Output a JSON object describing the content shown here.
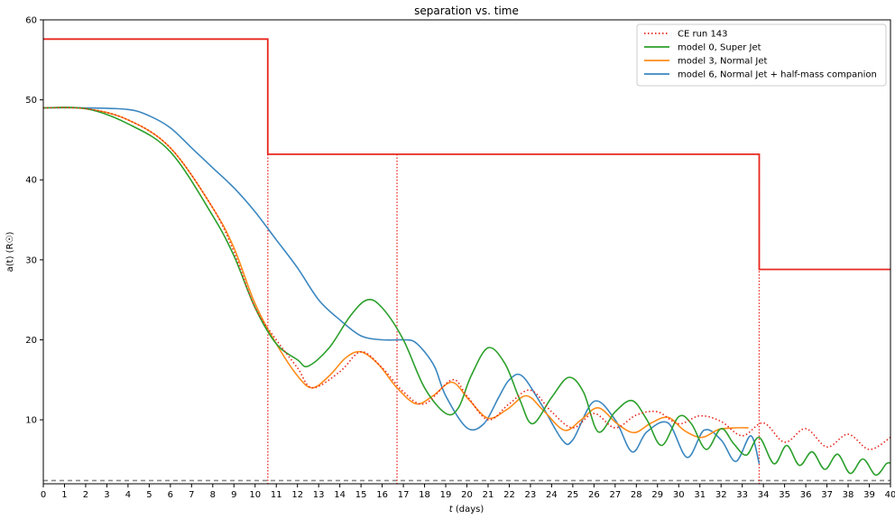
{
  "chart_data": {
    "type": "line",
    "title": "separation vs. time",
    "xlabel": "t (days)",
    "ylabel": "a(t) (R☉)",
    "xlim": [
      0,
      40
    ],
    "ylim": [
      2,
      60
    ],
    "x_ticks": [
      0,
      1,
      2,
      3,
      4,
      5,
      6,
      7,
      8,
      9,
      10,
      11,
      12,
      13,
      14,
      15,
      16,
      17,
      18,
      19,
      20,
      21,
      22,
      23,
      24,
      25,
      26,
      27,
      28,
      29,
      30,
      31,
      32,
      33,
      34,
      35,
      36,
      37,
      38,
      39,
      40
    ],
    "y_ticks": [
      10,
      20,
      30,
      40,
      50,
      60
    ],
    "grid": false,
    "legend_position": "top-right",
    "legend": [
      {
        "label": "CE run 143",
        "color": "#e8281e",
        "style": "dotted"
      },
      {
        "label": "model 0, Super Jet",
        "color": "#2ca02c",
        "style": "solid"
      },
      {
        "label": "model 3, Normal Jet",
        "color": "#ff8c1a",
        "style": "solid"
      },
      {
        "label": "model 6, Normal Jet + half-mass companion",
        "color": "#3b87c0",
        "style": "solid"
      }
    ],
    "step_line": {
      "color": "#e8281e",
      "points": [
        [
          0,
          57.6
        ],
        [
          10.6,
          57.6
        ],
        [
          10.6,
          43.2
        ],
        [
          33.8,
          43.2
        ],
        [
          33.8,
          28.8
        ],
        [
          40,
          28.8
        ]
      ]
    },
    "vertical_dotted_lines": {
      "color": "#e8281e",
      "x": [
        10.6,
        16.7,
        33.8
      ]
    },
    "baseline_dashed": {
      "y": 2.4,
      "color": "#888888"
    },
    "series": [
      {
        "name": "CE run 143",
        "color": "#e8281e",
        "style": "dotted",
        "x": [
          0,
          2,
          4,
          6,
          8,
          9,
          10,
          11,
          12,
          12.7,
          14,
          15,
          16,
          17,
          18,
          19.3,
          20,
          21,
          22,
          23,
          24,
          25,
          26,
          27,
          28,
          29,
          30,
          31,
          32,
          33,
          34,
          35,
          36,
          37,
          38,
          39,
          40
        ],
        "y": [
          49.0,
          48.9,
          47.5,
          44.0,
          36.5,
          31.0,
          24.0,
          20.0,
          16.5,
          14.0,
          16.0,
          18.5,
          16.5,
          13.5,
          12.0,
          15.0,
          13.0,
          10.0,
          12.0,
          13.7,
          11.0,
          9.0,
          10.8,
          9.0,
          10.6,
          11.0,
          9.5,
          10.5,
          9.8,
          8.0,
          9.6,
          7.2,
          8.9,
          6.6,
          8.2,
          6.3,
          7.8
        ]
      },
      {
        "name": "model 0, Super Jet",
        "color": "#2ca02c",
        "style": "solid",
        "x": [
          0,
          2,
          4,
          6,
          8,
          9,
          10,
          11,
          12,
          12.5,
          13.5,
          14.5,
          15.3,
          16,
          17,
          18,
          19,
          19.6,
          20.2,
          21,
          21.8,
          22.5,
          23.1,
          24,
          24.8,
          25.5,
          26.2,
          27,
          27.8,
          28.5,
          29.2,
          30,
          30.6,
          31.3,
          32,
          32.6,
          33.2,
          33.8,
          34.5,
          35.1,
          35.7,
          36.3,
          36.9,
          37.5,
          38.1,
          38.7,
          39.3,
          39.8,
          40
        ],
        "y": [
          49.0,
          48.9,
          47.0,
          43.5,
          35.5,
          30.5,
          24.0,
          19.5,
          17.5,
          16.7,
          19.0,
          23.0,
          25.0,
          24.0,
          20.0,
          14.0,
          10.8,
          11.5,
          15.5,
          19.0,
          17.0,
          12.5,
          9.5,
          12.8,
          15.3,
          13.5,
          8.5,
          11.0,
          12.4,
          10.0,
          6.8,
          10.4,
          9.5,
          6.3,
          8.9,
          7.0,
          5.6,
          7.8,
          4.5,
          6.8,
          4.3,
          6.0,
          3.8,
          5.7,
          3.3,
          5.1,
          3.1,
          4.5,
          4.6
        ]
      },
      {
        "name": "model 3, Normal Jet",
        "color": "#ff8c1a",
        "style": "solid",
        "x": [
          0,
          2,
          4,
          6,
          8,
          9,
          10,
          11,
          12,
          12.7,
          13.5,
          14.3,
          15,
          15.8,
          16.7,
          17.6,
          18.4,
          19.3,
          20.1,
          21,
          21.9,
          22.8,
          23.6,
          24.6,
          25.4,
          26.2,
          27.1,
          27.9,
          28.7,
          29.5,
          30.3,
          31.1,
          31.9,
          32.7,
          33.3
        ],
        "y": [
          49.0,
          48.9,
          47.5,
          44.0,
          36.5,
          31.5,
          24.5,
          19.5,
          15.5,
          14.0,
          15.5,
          17.8,
          18.5,
          17.0,
          14.0,
          12.0,
          13.0,
          14.7,
          12.5,
          10.2,
          11.3,
          13.0,
          11.2,
          8.7,
          10.0,
          11.5,
          9.5,
          8.4,
          9.6,
          10.3,
          8.6,
          7.8,
          8.8,
          9.0,
          9.0
        ]
      },
      {
        "name": "model 6, Normal Jet + half-mass companion",
        "color": "#3b87c0",
        "style": "solid",
        "x": [
          0,
          2,
          4,
          5,
          6,
          7,
          8,
          9,
          10,
          11,
          12,
          13,
          14,
          15,
          16,
          17,
          17.5,
          18,
          18.5,
          19,
          20,
          20.8,
          21.5,
          22,
          22.6,
          23.5,
          24.5,
          25,
          26,
          27,
          27.8,
          28.5,
          29.5,
          30.4,
          31.2,
          32,
          32.7,
          33.4,
          33.8
        ],
        "y": [
          49.0,
          49.0,
          48.8,
          48.0,
          46.5,
          44.0,
          41.5,
          39.0,
          36.0,
          32.5,
          29.0,
          25.0,
          22.5,
          20.5,
          20.0,
          20.0,
          19.8,
          18.5,
          16.5,
          13.0,
          9.0,
          9.5,
          12.8,
          15.0,
          15.5,
          12.0,
          7.5,
          7.5,
          12.3,
          10.0,
          6.0,
          8.5,
          9.6,
          5.3,
          8.7,
          7.5,
          4.8,
          8.0,
          4.5
        ]
      }
    ]
  }
}
